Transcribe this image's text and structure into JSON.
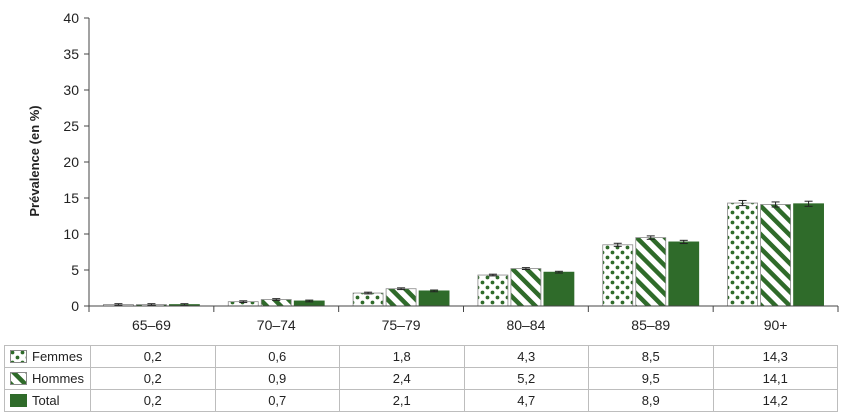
{
  "chart_data": {
    "type": "bar",
    "ylabel": "Prévalence (en %)",
    "xlabel": "",
    "ylim": [
      0,
      40
    ],
    "yticks": [
      0,
      5,
      10,
      15,
      20,
      25,
      30,
      35,
      40
    ],
    "categories": [
      "65–69",
      "70–74",
      "75–79",
      "80–84",
      "85–89",
      "90+"
    ],
    "error_bars": true,
    "series": [
      {
        "name": "Femmes",
        "pattern": "dots",
        "color": "#2f6b2a",
        "values": [
          0.2,
          0.6,
          1.8,
          4.3,
          8.5,
          14.3
        ],
        "labels": [
          "0,2",
          "0,6",
          "1,8",
          "4,3",
          "8,5",
          "14,3"
        ]
      },
      {
        "name": "Hommes",
        "pattern": "diagonal-stripes",
        "color": "#2f6b2a",
        "values": [
          0.2,
          0.9,
          2.4,
          5.2,
          9.5,
          14.1
        ],
        "labels": [
          "0,2",
          "0,9",
          "2,4",
          "5,2",
          "9,5",
          "14,1"
        ]
      },
      {
        "name": "Total",
        "pattern": "solid",
        "color": "#2f6b2a",
        "values": [
          0.2,
          0.7,
          2.1,
          4.7,
          8.9,
          14.2
        ],
        "labels": [
          "0,2",
          "0,7",
          "2,1",
          "4,7",
          "8,9",
          "14,2"
        ]
      }
    ]
  }
}
